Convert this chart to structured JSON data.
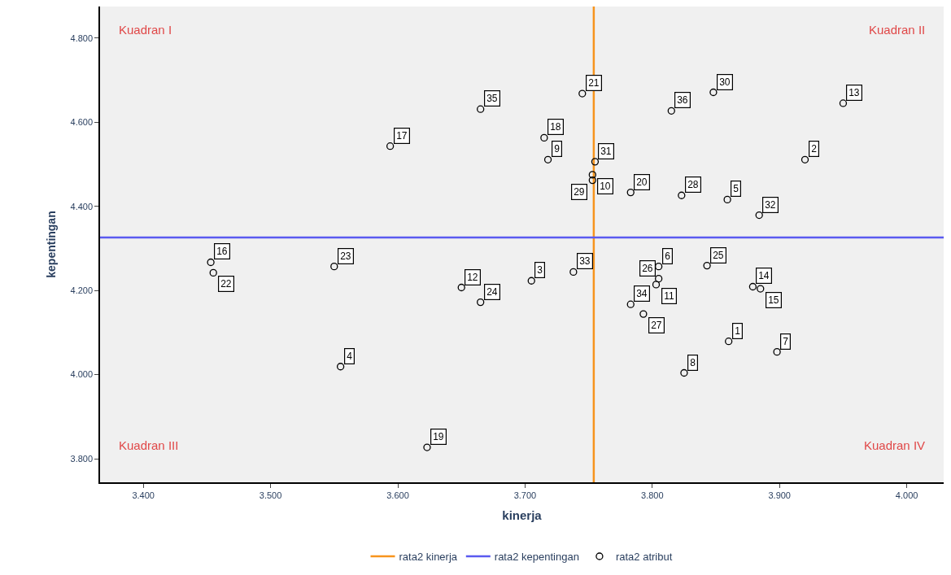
{
  "chart_data": {
    "type": "scatter",
    "xlabel": "kinerja",
    "ylabel": "kepentingan",
    "xlim": [
      3.366,
      4.029
    ],
    "ylim": [
      3.744,
      4.875
    ],
    "xticks": [
      {
        "value": 3.4,
        "label": "3.400"
      },
      {
        "value": 3.5,
        "label": "3.500"
      },
      {
        "value": 3.6,
        "label": "3.600"
      },
      {
        "value": 3.7,
        "label": "3.700"
      },
      {
        "value": 3.8,
        "label": "3.800"
      },
      {
        "value": 3.9,
        "label": "3.900"
      },
      {
        "value": 4.0,
        "label": "4.000"
      }
    ],
    "yticks": [
      {
        "value": 3.8,
        "label": "3.800"
      },
      {
        "value": 4.0,
        "label": "4.000"
      },
      {
        "value": 4.2,
        "label": "4.200"
      },
      {
        "value": 4.4,
        "label": "4.400"
      },
      {
        "value": 4.6,
        "label": "4.600"
      },
      {
        "value": 4.8,
        "label": "4.800"
      }
    ],
    "grid": false,
    "legend": "bottom",
    "marker": "circle",
    "series": [
      {
        "name": "rata2 atribut",
        "color": "#000000",
        "x": [
          3.86,
          3.92,
          3.705,
          3.555,
          3.859,
          3.805,
          3.898,
          3.825,
          3.718,
          3.753,
          3.803,
          3.65,
          3.95,
          3.879,
          3.885,
          3.453,
          3.594,
          3.715,
          3.623,
          3.783,
          3.745,
          3.455,
          3.55,
          3.665,
          3.843,
          3.805,
          3.793,
          3.823,
          3.753,
          3.848,
          3.755,
          3.884,
          3.738,
          3.783,
          3.665,
          3.815
        ],
        "values": [
          4.079,
          4.511,
          4.223,
          4.019,
          4.416,
          4.257,
          4.054,
          4.004,
          4.511,
          4.475,
          4.214,
          4.207,
          4.645,
          4.209,
          4.204,
          4.267,
          4.543,
          4.563,
          3.827,
          4.433,
          4.668,
          4.242,
          4.257,
          4.172,
          4.259,
          4.228,
          4.144,
          4.426,
          4.462,
          4.671,
          4.506,
          4.379,
          4.244,
          4.167,
          4.631,
          4.627
        ]
      }
    ],
    "ref_lines": [
      {
        "axis": "x",
        "value": 3.754,
        "label": "rata2 kinerja",
        "color": "#f7941d"
      },
      {
        "axis": "y",
        "value": 4.326,
        "label": "rata2 kepentingan",
        "color": "#5a5af0"
      }
    ],
    "annotations": [
      "Kuadran I",
      "Kuadran II",
      "Kuadran III",
      "Kuadran IV",
      {
        "text": "1",
        "x": 3.86,
        "y": 4.079
      },
      {
        "text": "2",
        "x": 3.92,
        "y": 4.511
      },
      {
        "text": "3",
        "x": 3.705,
        "y": 4.223
      },
      {
        "text": "4",
        "x": 3.555,
        "y": 4.019
      },
      {
        "text": "5",
        "x": 3.859,
        "y": 4.416
      },
      {
        "text": "6",
        "x": 3.805,
        "y": 4.257
      },
      {
        "text": "7",
        "x": 3.898,
        "y": 4.054
      },
      {
        "text": "8",
        "x": 3.825,
        "y": 4.004
      },
      {
        "text": "9",
        "x": 3.718,
        "y": 4.511
      },
      {
        "text": "10",
        "x": 3.753,
        "y": 4.475
      },
      {
        "text": "11",
        "x": 3.803,
        "y": 4.214
      },
      {
        "text": "12",
        "x": 3.65,
        "y": 4.207
      },
      {
        "text": "13",
        "x": 3.95,
        "y": 4.645
      },
      {
        "text": "14",
        "x": 3.879,
        "y": 4.209
      },
      {
        "text": "15",
        "x": 3.885,
        "y": 4.204
      },
      {
        "text": "16",
        "x": 3.453,
        "y": 4.267
      },
      {
        "text": "17",
        "x": 3.594,
        "y": 4.543
      },
      {
        "text": "18",
        "x": 3.715,
        "y": 4.563
      },
      {
        "text": "19",
        "x": 3.623,
        "y": 3.827
      },
      {
        "text": "20",
        "x": 3.783,
        "y": 4.433
      },
      {
        "text": "21",
        "x": 3.745,
        "y": 4.668
      },
      {
        "text": "22",
        "x": 3.455,
        "y": 4.242
      },
      {
        "text": "23",
        "x": 3.55,
        "y": 4.257
      },
      {
        "text": "24",
        "x": 3.665,
        "y": 4.172
      },
      {
        "text": "25",
        "x": 3.843,
        "y": 4.259
      },
      {
        "text": "26",
        "x": 3.805,
        "y": 4.228
      },
      {
        "text": "27",
        "x": 3.793,
        "y": 4.144
      },
      {
        "text": "28",
        "x": 3.823,
        "y": 4.426
      },
      {
        "text": "29",
        "x": 3.753,
        "y": 4.462
      },
      {
        "text": "30",
        "x": 3.848,
        "y": 4.671
      },
      {
        "text": "31",
        "x": 3.755,
        "y": 4.506
      },
      {
        "text": "32",
        "x": 3.884,
        "y": 4.379
      },
      {
        "text": "33",
        "x": 3.738,
        "y": 4.244
      },
      {
        "text": "34",
        "x": 3.783,
        "y": 4.167
      },
      {
        "text": "35",
        "x": 3.665,
        "y": 4.631
      },
      {
        "text": "36",
        "x": 3.815,
        "y": 4.627
      }
    ]
  }
}
